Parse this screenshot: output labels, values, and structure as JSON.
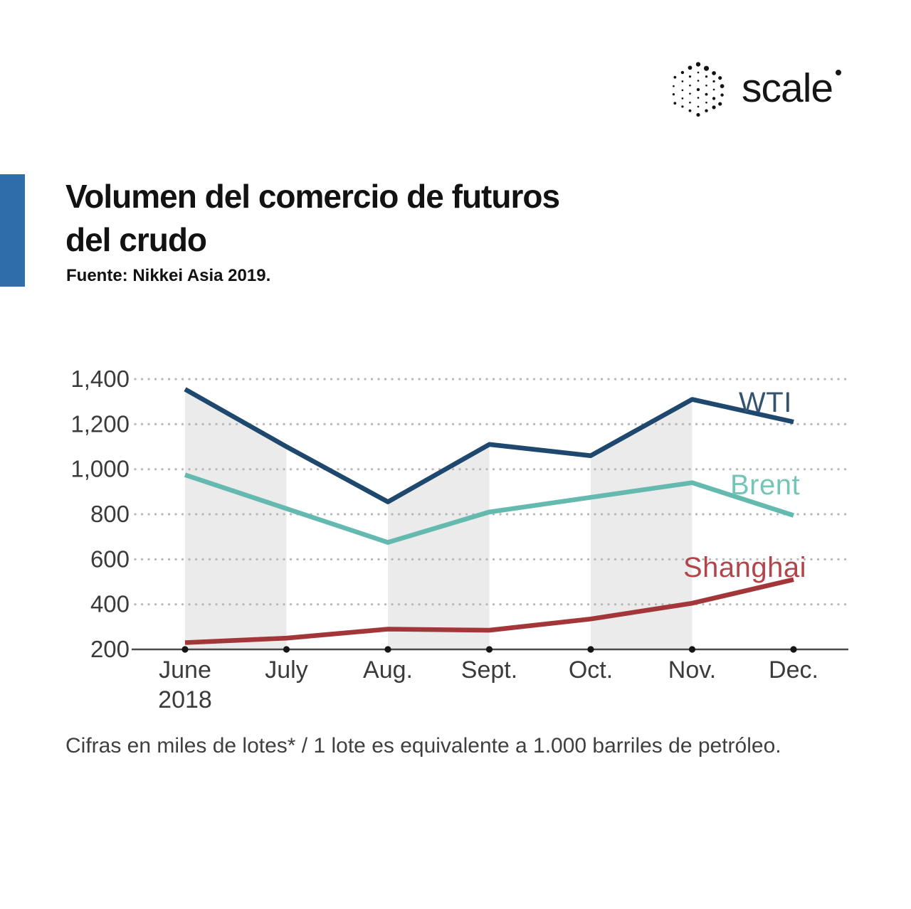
{
  "logo": {
    "brand": "scale",
    "icon": "dotted-hexagon-icon"
  },
  "header": {
    "title_line1": "Volumen del comercio de futuros",
    "title_line2": "del crudo",
    "source": "Fuente: Nikkei Asia 2019."
  },
  "footer": {
    "note": "Cifras en miles de lotes* / 1 lote es equivalente a 1.000 barriles de petróleo."
  },
  "chart_data": {
    "type": "line",
    "title": "Volumen del comercio de futuros del crudo",
    "xlabel": "",
    "ylabel": "",
    "categories": [
      "June 2018",
      "July",
      "Aug.",
      "Sept.",
      "Oct.",
      "Nov.",
      "Dec."
    ],
    "x_tick_labels": [
      [
        "June",
        "2018"
      ],
      [
        "July"
      ],
      [
        "Aug."
      ],
      [
        "Sept."
      ],
      [
        "Oct."
      ],
      [
        "Nov."
      ],
      [
        "Dec."
      ]
    ],
    "series": [
      {
        "name": "WTI",
        "color": "#1e486d",
        "label_color": "#33536f",
        "values": [
          1355,
          1100,
          855,
          1110,
          1060,
          1310,
          1210
        ]
      },
      {
        "name": "Brent",
        "color": "#65bab0",
        "label_color": "#74c4b8",
        "values": [
          975,
          825,
          675,
          810,
          875,
          940,
          795
        ]
      },
      {
        "name": "Shanghai",
        "color": "#a33638",
        "label_color": "#b2454a",
        "values": [
          230,
          250,
          290,
          285,
          335,
          405,
          510
        ]
      }
    ],
    "ylim": [
      200,
      1400
    ],
    "yticks": [
      200,
      400,
      600,
      800,
      1000,
      1200,
      1400
    ],
    "ytick_labels": [
      "200",
      "400",
      "600",
      "800",
      "1,000",
      "1,200",
      "1,400"
    ],
    "grid": "dotted horizontal gridlines",
    "legend_position": "inline right of lines",
    "shaded_bands_between": [
      [
        "June 2018",
        "July"
      ],
      [
        "Aug.",
        "Sept."
      ],
      [
        "Oct.",
        "Nov."
      ]
    ],
    "band_pairs": [
      [
        0,
        1
      ],
      [
        2,
        3
      ],
      [
        4,
        5
      ]
    ],
    "band_fill_under_series": "WTI",
    "band_color": "#ebebeb",
    "axis_color": "#4a4a4a",
    "grid_color": "#b8b8b8",
    "tick_label_color": "#3b3b3b",
    "unit_note": "Cifras en miles de lotes* / 1 lote es equivalente a 1.000 barriles de petróleo."
  }
}
